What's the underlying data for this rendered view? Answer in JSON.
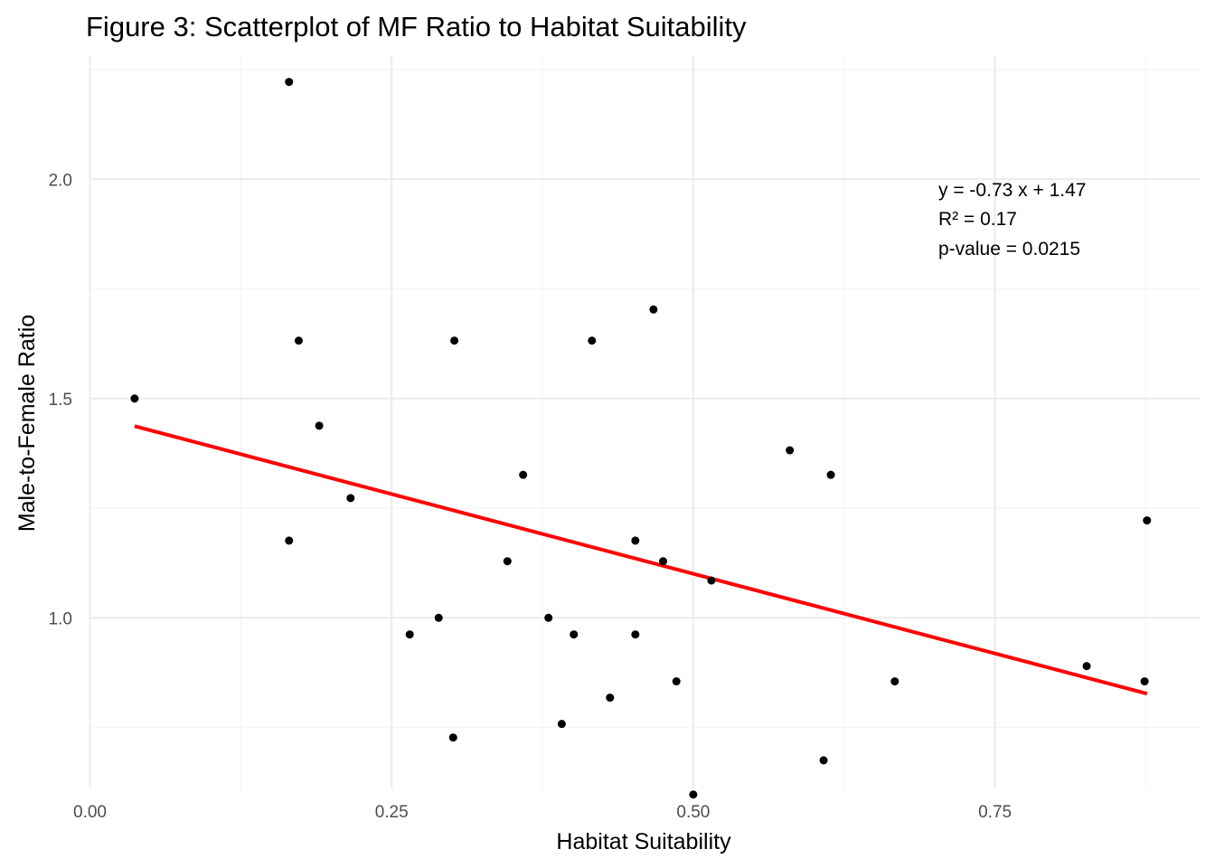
{
  "chart_data": {
    "type": "scatter",
    "title": "Figure 3: Scatterplot of MF Ratio to Habitat Suitability",
    "xlabel": "Habitat Suitability",
    "ylabel": "Male-to-Female Ratio",
    "xlim": [
      0.0,
      0.92
    ],
    "ylim": [
      0.58,
      2.25
    ],
    "x_ticks": [
      0.0,
      0.25,
      0.5,
      0.75
    ],
    "x_tick_labels": [
      "0.00",
      "0.25",
      "0.50",
      "0.75"
    ],
    "y_ticks": [
      1.0,
      1.5,
      2.0
    ],
    "y_tick_labels": [
      "1.0",
      "1.5",
      "2.0"
    ],
    "grid": true,
    "point_color": "#000000",
    "fit_color": "#ff0000",
    "points": [
      {
        "x": 0.037,
        "y": 1.5
      },
      {
        "x": 0.165,
        "y": 2.222
      },
      {
        "x": 0.173,
        "y": 1.632
      },
      {
        "x": 0.19,
        "y": 1.438
      },
      {
        "x": 0.165,
        "y": 1.176
      },
      {
        "x": 0.216,
        "y": 1.273
      },
      {
        "x": 0.265,
        "y": 0.962
      },
      {
        "x": 0.289,
        "y": 1.0
      },
      {
        "x": 0.302,
        "y": 1.632
      },
      {
        "x": 0.301,
        "y": 0.727
      },
      {
        "x": 0.346,
        "y": 1.129
      },
      {
        "x": 0.359,
        "y": 1.326
      },
      {
        "x": 0.38,
        "y": 1.0
      },
      {
        "x": 0.391,
        "y": 0.758
      },
      {
        "x": 0.401,
        "y": 0.962
      },
      {
        "x": 0.416,
        "y": 1.632
      },
      {
        "x": 0.431,
        "y": 0.818
      },
      {
        "x": 0.452,
        "y": 1.176
      },
      {
        "x": 0.452,
        "y": 0.962
      },
      {
        "x": 0.467,
        "y": 1.703
      },
      {
        "x": 0.475,
        "y": 1.129
      },
      {
        "x": 0.486,
        "y": 0.855
      },
      {
        "x": 0.5,
        "y": 0.597
      },
      {
        "x": 0.515,
        "y": 1.085
      },
      {
        "x": 0.58,
        "y": 1.382
      },
      {
        "x": 0.608,
        "y": 0.675
      },
      {
        "x": 0.614,
        "y": 1.326
      },
      {
        "x": 0.667,
        "y": 0.855
      },
      {
        "x": 0.826,
        "y": 0.89
      },
      {
        "x": 0.874,
        "y": 0.855
      },
      {
        "x": 0.876,
        "y": 1.222
      }
    ],
    "fit_line": {
      "x": [
        0.037,
        0.876
      ],
      "y": [
        1.437,
        0.827
      ]
    },
    "annotation": {
      "line1": "y =  -0.73 x  +  1.47",
      "line2": "R² =  0.17",
      "line3": "p-value =  0.0215"
    }
  }
}
